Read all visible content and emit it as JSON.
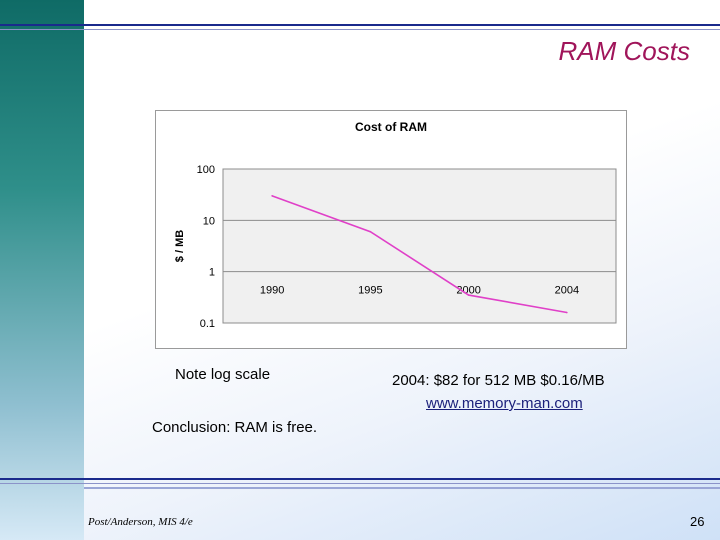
{
  "slide": {
    "title": "RAM Costs",
    "note_left": "Note log scale",
    "note_right": "2004: $82 for 512 MB $0.16/MB",
    "link_text": "www.memory-man.com",
    "conclusion": "Conclusion: RAM is free.",
    "footer_left": "Post/Anderson, MIS 4/e",
    "page_number": "26"
  },
  "colors": {
    "title": "#a0155a",
    "series_line": "#e040c8",
    "plot_background": "#f0f0f0",
    "sidebar": "#0f6b66"
  },
  "chart_data": {
    "type": "line",
    "title": "Cost of RAM",
    "xlabel": "",
    "ylabel": "$ / MB",
    "yscale": "log",
    "ylim": [
      0.1,
      100
    ],
    "ytick_labels": [
      "100",
      "10",
      "1",
      "0.1"
    ],
    "categories": [
      "1990",
      "1995",
      "2000",
      "2004"
    ],
    "values": [
      30,
      6,
      0.35,
      0.16
    ],
    "grid": true
  }
}
